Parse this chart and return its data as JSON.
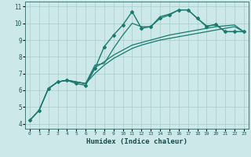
{
  "xlabel": "Humidex (Indice chaleur)",
  "bg_color": "#cce8e8",
  "grid_color": "#aacccc",
  "line_color": "#1a7a6e",
  "xlim": [
    -0.5,
    23.5
  ],
  "ylim": [
    3.7,
    11.3
  ],
  "xticks": [
    0,
    1,
    2,
    3,
    4,
    5,
    6,
    7,
    8,
    9,
    10,
    11,
    12,
    13,
    14,
    15,
    16,
    17,
    18,
    19,
    20,
    21,
    22,
    23
  ],
  "yticks": [
    4,
    5,
    6,
    7,
    8,
    9,
    10,
    11
  ],
  "series": [
    {
      "x": [
        0,
        1,
        2,
        3,
        4,
        5,
        6,
        7,
        8,
        9,
        10,
        11,
        12,
        13,
        14,
        15,
        16,
        17,
        18,
        19,
        20,
        21,
        22,
        23
      ],
      "y": [
        4.2,
        4.8,
        6.1,
        6.5,
        6.6,
        6.4,
        6.3,
        7.3,
        8.6,
        9.3,
        9.9,
        10.7,
        9.7,
        9.8,
        10.3,
        10.5,
        10.8,
        10.8,
        10.3,
        9.8,
        9.95,
        9.5,
        9.5,
        9.5
      ],
      "marker": "D",
      "markersize": 2.0,
      "linewidth": 1.0
    },
    {
      "x": [
        2,
        3,
        4,
        5,
        6,
        7,
        8,
        9,
        10,
        11,
        12,
        13,
        14,
        15,
        16,
        17,
        18,
        19,
        20,
        21,
        22,
        23
      ],
      "y": [
        6.1,
        6.5,
        6.6,
        6.5,
        6.4,
        7.5,
        7.6,
        8.5,
        9.3,
        10.0,
        9.8,
        9.8,
        10.4,
        10.55,
        10.8,
        10.8,
        10.3,
        9.85,
        9.9,
        9.5,
        9.5,
        9.5
      ],
      "marker": null,
      "markersize": 0,
      "linewidth": 0.9
    },
    {
      "x": [
        0,
        1,
        2,
        3,
        4,
        5,
        6,
        7,
        8,
        9,
        10,
        11,
        12,
        13,
        14,
        15,
        16,
        17,
        18,
        19,
        20,
        21,
        22,
        23
      ],
      "y": [
        4.2,
        4.8,
        6.1,
        6.5,
        6.6,
        6.5,
        6.4,
        7.35,
        7.7,
        8.1,
        8.4,
        8.7,
        8.85,
        9.0,
        9.15,
        9.3,
        9.4,
        9.5,
        9.6,
        9.7,
        9.8,
        9.85,
        9.9,
        9.5
      ],
      "marker": null,
      "markersize": 0,
      "linewidth": 0.9
    },
    {
      "x": [
        0,
        1,
        2,
        3,
        4,
        5,
        6,
        7,
        8,
        9,
        10,
        11,
        12,
        13,
        14,
        15,
        16,
        17,
        18,
        19,
        20,
        21,
        22,
        23
      ],
      "y": [
        4.2,
        4.8,
        6.1,
        6.5,
        6.6,
        6.5,
        6.4,
        7.0,
        7.5,
        7.9,
        8.2,
        8.5,
        8.7,
        8.85,
        9.0,
        9.1,
        9.2,
        9.3,
        9.4,
        9.5,
        9.6,
        9.7,
        9.8,
        9.5
      ],
      "marker": null,
      "markersize": 0,
      "linewidth": 0.9
    }
  ]
}
